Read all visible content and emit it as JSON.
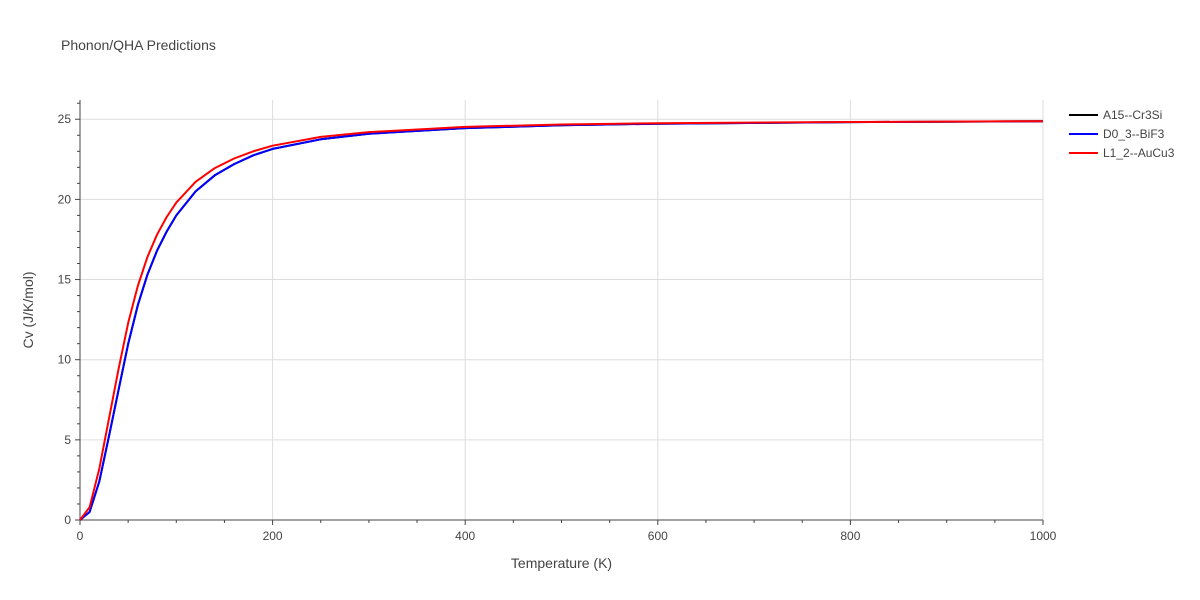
{
  "chart_data": {
    "type": "line",
    "title": "Phonon/QHA Predictions",
    "xlabel": "Temperature (K)",
    "ylabel": "Cv (J/K/mol)",
    "xlim": [
      0,
      1000
    ],
    "ylim": [
      0,
      26.2
    ],
    "x_ticks": [
      0,
      200,
      400,
      600,
      800,
      1000
    ],
    "y_ticks": [
      0,
      5,
      10,
      15,
      20,
      25
    ],
    "grid": true,
    "legend_position": "top-right",
    "series": [
      {
        "name": "A15--Cr3Si",
        "color": "#000000",
        "x": [
          0,
          10,
          20,
          30,
          40,
          50,
          60,
          70,
          80,
          90,
          100,
          120,
          140,
          160,
          180,
          200,
          250,
          300,
          400,
          500,
          600,
          800,
          1000
        ],
        "y": [
          0,
          0.5,
          2.4,
          5.2,
          8.1,
          11.0,
          13.4,
          15.3,
          16.8,
          18.0,
          19.0,
          20.5,
          21.5,
          22.2,
          22.75,
          23.15,
          23.75,
          24.1,
          24.45,
          24.62,
          24.72,
          24.82,
          24.87
        ]
      },
      {
        "name": "D0_3--BiF3",
        "color": "#0000ff",
        "x": [
          0,
          10,
          20,
          30,
          40,
          50,
          60,
          70,
          80,
          90,
          100,
          120,
          140,
          160,
          180,
          200,
          250,
          300,
          400,
          500,
          600,
          800,
          1000
        ],
        "y": [
          0,
          0.5,
          2.4,
          5.2,
          8.1,
          11.0,
          13.4,
          15.3,
          16.8,
          18.0,
          19.0,
          20.5,
          21.5,
          22.2,
          22.75,
          23.15,
          23.75,
          24.1,
          24.45,
          24.62,
          24.72,
          24.82,
          24.87
        ]
      },
      {
        "name": "L1_2--AuCu3",
        "color": "#ff0000",
        "x": [
          0,
          10,
          20,
          30,
          40,
          50,
          60,
          70,
          80,
          90,
          100,
          120,
          140,
          160,
          180,
          200,
          250,
          300,
          400,
          500,
          600,
          800,
          1000
        ],
        "y": [
          0,
          0.8,
          3.2,
          6.3,
          9.4,
          12.3,
          14.6,
          16.4,
          17.8,
          18.9,
          19.8,
          21.1,
          21.95,
          22.55,
          23.0,
          23.35,
          23.9,
          24.2,
          24.52,
          24.67,
          24.75,
          24.83,
          24.88
        ]
      }
    ]
  }
}
